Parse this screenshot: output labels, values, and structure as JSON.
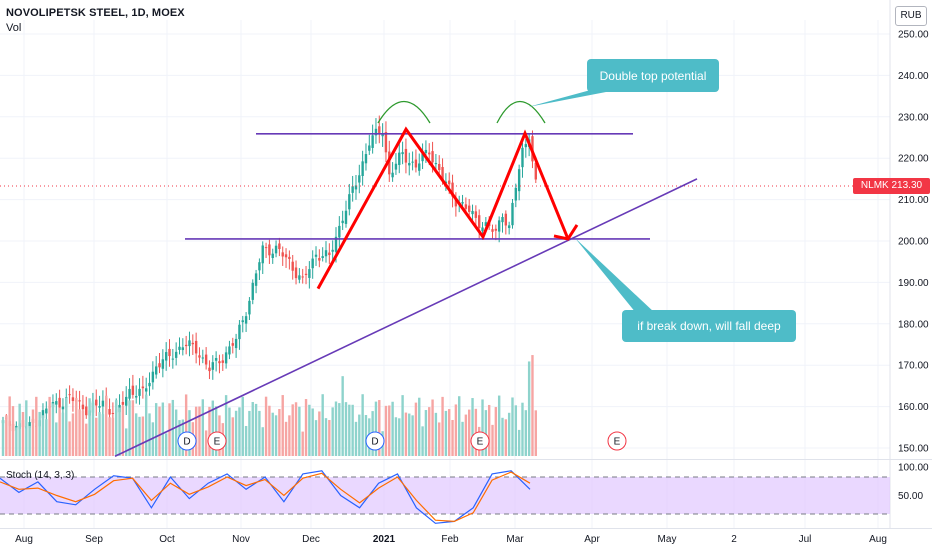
{
  "header": {
    "title": "NOVOLIPETSK STEEL, 1D, MOEX",
    "volume_label": "Vol"
  },
  "currency_button": "RUB",
  "price_tag": "NLMK  213.30",
  "stoch_label": "Stoch (14, 3, 3)",
  "annotations": {
    "callout_top": "Double top potential",
    "callout_bottom": "if break down, will fall deep"
  },
  "event_markers": [
    "D",
    "E",
    "D",
    "E",
    "E"
  ],
  "colors": {
    "up_candle": "#26a69a",
    "down_candle": "#ef5350",
    "trendline": "#673ab7",
    "pattern_arrow": "#ff0000",
    "arc": "#2e9a2e",
    "callout": "#4ebcc8",
    "stoch_band": "#e1c8ff",
    "stoch_k": "#2962ff",
    "stoch_d": "#ff6d00",
    "price_tag": "#f23645"
  },
  "chart_data": [
    {
      "type": "candlestick",
      "title": "NOVOLIPETSK STEEL, 1D, MOEX",
      "x_ticks": [
        "Aug",
        "Sep",
        "Oct",
        "Nov",
        "Dec",
        "2021",
        "Feb",
        "Mar",
        "Apr",
        "May",
        "2",
        "Jul",
        "Aug"
      ],
      "y_ticks": [
        150,
        160,
        170,
        180,
        190,
        200,
        210,
        220,
        230,
        240,
        250
      ],
      "y_tick_labels": [
        "150.00",
        "160.00",
        "170.00",
        "180.00",
        "190.00",
        "200.00",
        "210.00",
        "220.00",
        "230.00",
        "240.00",
        "250.00"
      ],
      "ylim": [
        147,
        255
      ],
      "last_price": 213.3,
      "price_path_approx": [
        {
          "x": "Aug",
          "y": 156
        },
        {
          "x": "mid Aug",
          "y": 161
        },
        {
          "x": "Sep",
          "y": 160
        },
        {
          "x": "mid Sep",
          "y": 166
        },
        {
          "x": "Oct",
          "y": 175
        },
        {
          "x": "mid Oct",
          "y": 170
        },
        {
          "x": "Nov",
          "y": 178
        },
        {
          "x": "mid Nov",
          "y": 200
        },
        {
          "x": "Dec",
          "y": 190
        },
        {
          "x": "mid Dec",
          "y": 213
        },
        {
          "x": "2021",
          "y": 227
        },
        {
          "x": "mid Jan",
          "y": 217
        },
        {
          "x": "Feb",
          "y": 201
        },
        {
          "x": "late Feb",
          "y": 226
        },
        {
          "x": "Mar",
          "y": 213.3
        }
      ],
      "drawings": {
        "resistance_line": 226,
        "neckline": 200.5,
        "ascending_trendline": [
          {
            "x": "Sep",
            "y": 148
          },
          {
            "x": "Apr",
            "y": 215
          }
        ],
        "double_top_arrow": [
          188.5,
          227,
          201,
          226,
          200.5
        ]
      }
    },
    {
      "type": "line",
      "title": "Stoch (14, 3, 3)",
      "y_ticks": [
        50,
        100
      ],
      "y_tick_labels": [
        "50.00",
        "100.00"
      ],
      "upper_band": 80,
      "lower_band": 20,
      "series": [
        {
          "name": "%K",
          "values": [
            78,
            55,
            72,
            40,
            35,
            60,
            82,
            78,
            30,
            80,
            45,
            70,
            85,
            60,
            80,
            40,
            85,
            90,
            50,
            30,
            70,
            85,
            30,
            5,
            8,
            30,
            85,
            90,
            60
          ]
        },
        {
          "name": "%D",
          "values": [
            72,
            60,
            62,
            50,
            40,
            52,
            74,
            78,
            42,
            70,
            52,
            64,
            80,
            66,
            76,
            50,
            78,
            86,
            60,
            38,
            62,
            80,
            42,
            10,
            8,
            22,
            75,
            88,
            70
          ]
        }
      ]
    }
  ]
}
